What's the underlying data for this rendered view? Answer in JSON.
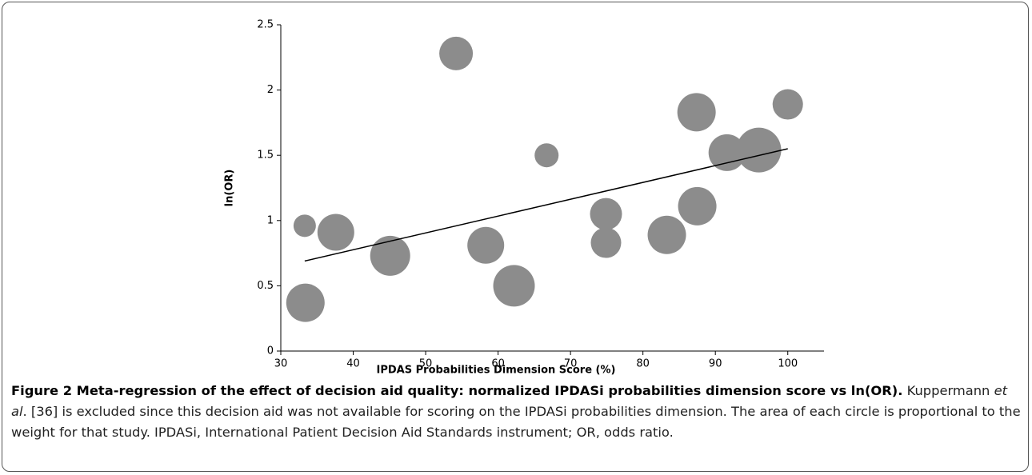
{
  "chart_data": {
    "type": "bubble",
    "x_label": "IPDAS Probabilities Dimension Score (%)",
    "y_label": "ln(OR)",
    "x": [
      33.4,
      33.3,
      37.6,
      45.1,
      54.2,
      58.3,
      62.2,
      66.7,
      74.9,
      74.9,
      83.3,
      87.4,
      87.5,
      91.6,
      96.0,
      100.0
    ],
    "values": [
      0.37,
      0.96,
      0.91,
      0.73,
      2.28,
      0.81,
      0.5,
      1.5,
      1.05,
      0.83,
      0.89,
      1.83,
      1.11,
      1.52,
      1.54,
      1.89
    ],
    "sizes": [
      5.76,
      1.96,
      5.29,
      6.25,
      4.41,
      5.29,
      6.76,
      2.25,
      4.0,
      3.61,
      5.76,
      5.76,
      5.76,
      5.29,
      7.84,
      3.61
    ],
    "color": "#8c8c8c",
    "trendline": {
      "x": [
        33.3,
        100
      ],
      "y": [
        0.69,
        1.55
      ],
      "color": "#000000"
    },
    "xlim": [
      30,
      105
    ],
    "xticks": [
      30,
      40,
      50,
      60,
      70,
      80,
      90,
      100
    ],
    "ylim": [
      0,
      2.5
    ],
    "yticks": [
      0,
      0.5,
      1,
      1.5,
      2,
      2.5
    ]
  },
  "caption": {
    "title": "Figure 2 Meta-regression of the effect of decision aid quality: normalized IPDASi probabilities dimension score vs ln(OR).",
    "text_1": "Kuppermann",
    "text_italic": "et al",
    "text_2": ". [36] is excluded since this decision aid was not available for scoring on the IPDASi probabilities dimension. The area of each circle is proportional to the weight for that study. IPDASi, International Patient Decision Aid Standards instrument; OR, odds ratio."
  }
}
